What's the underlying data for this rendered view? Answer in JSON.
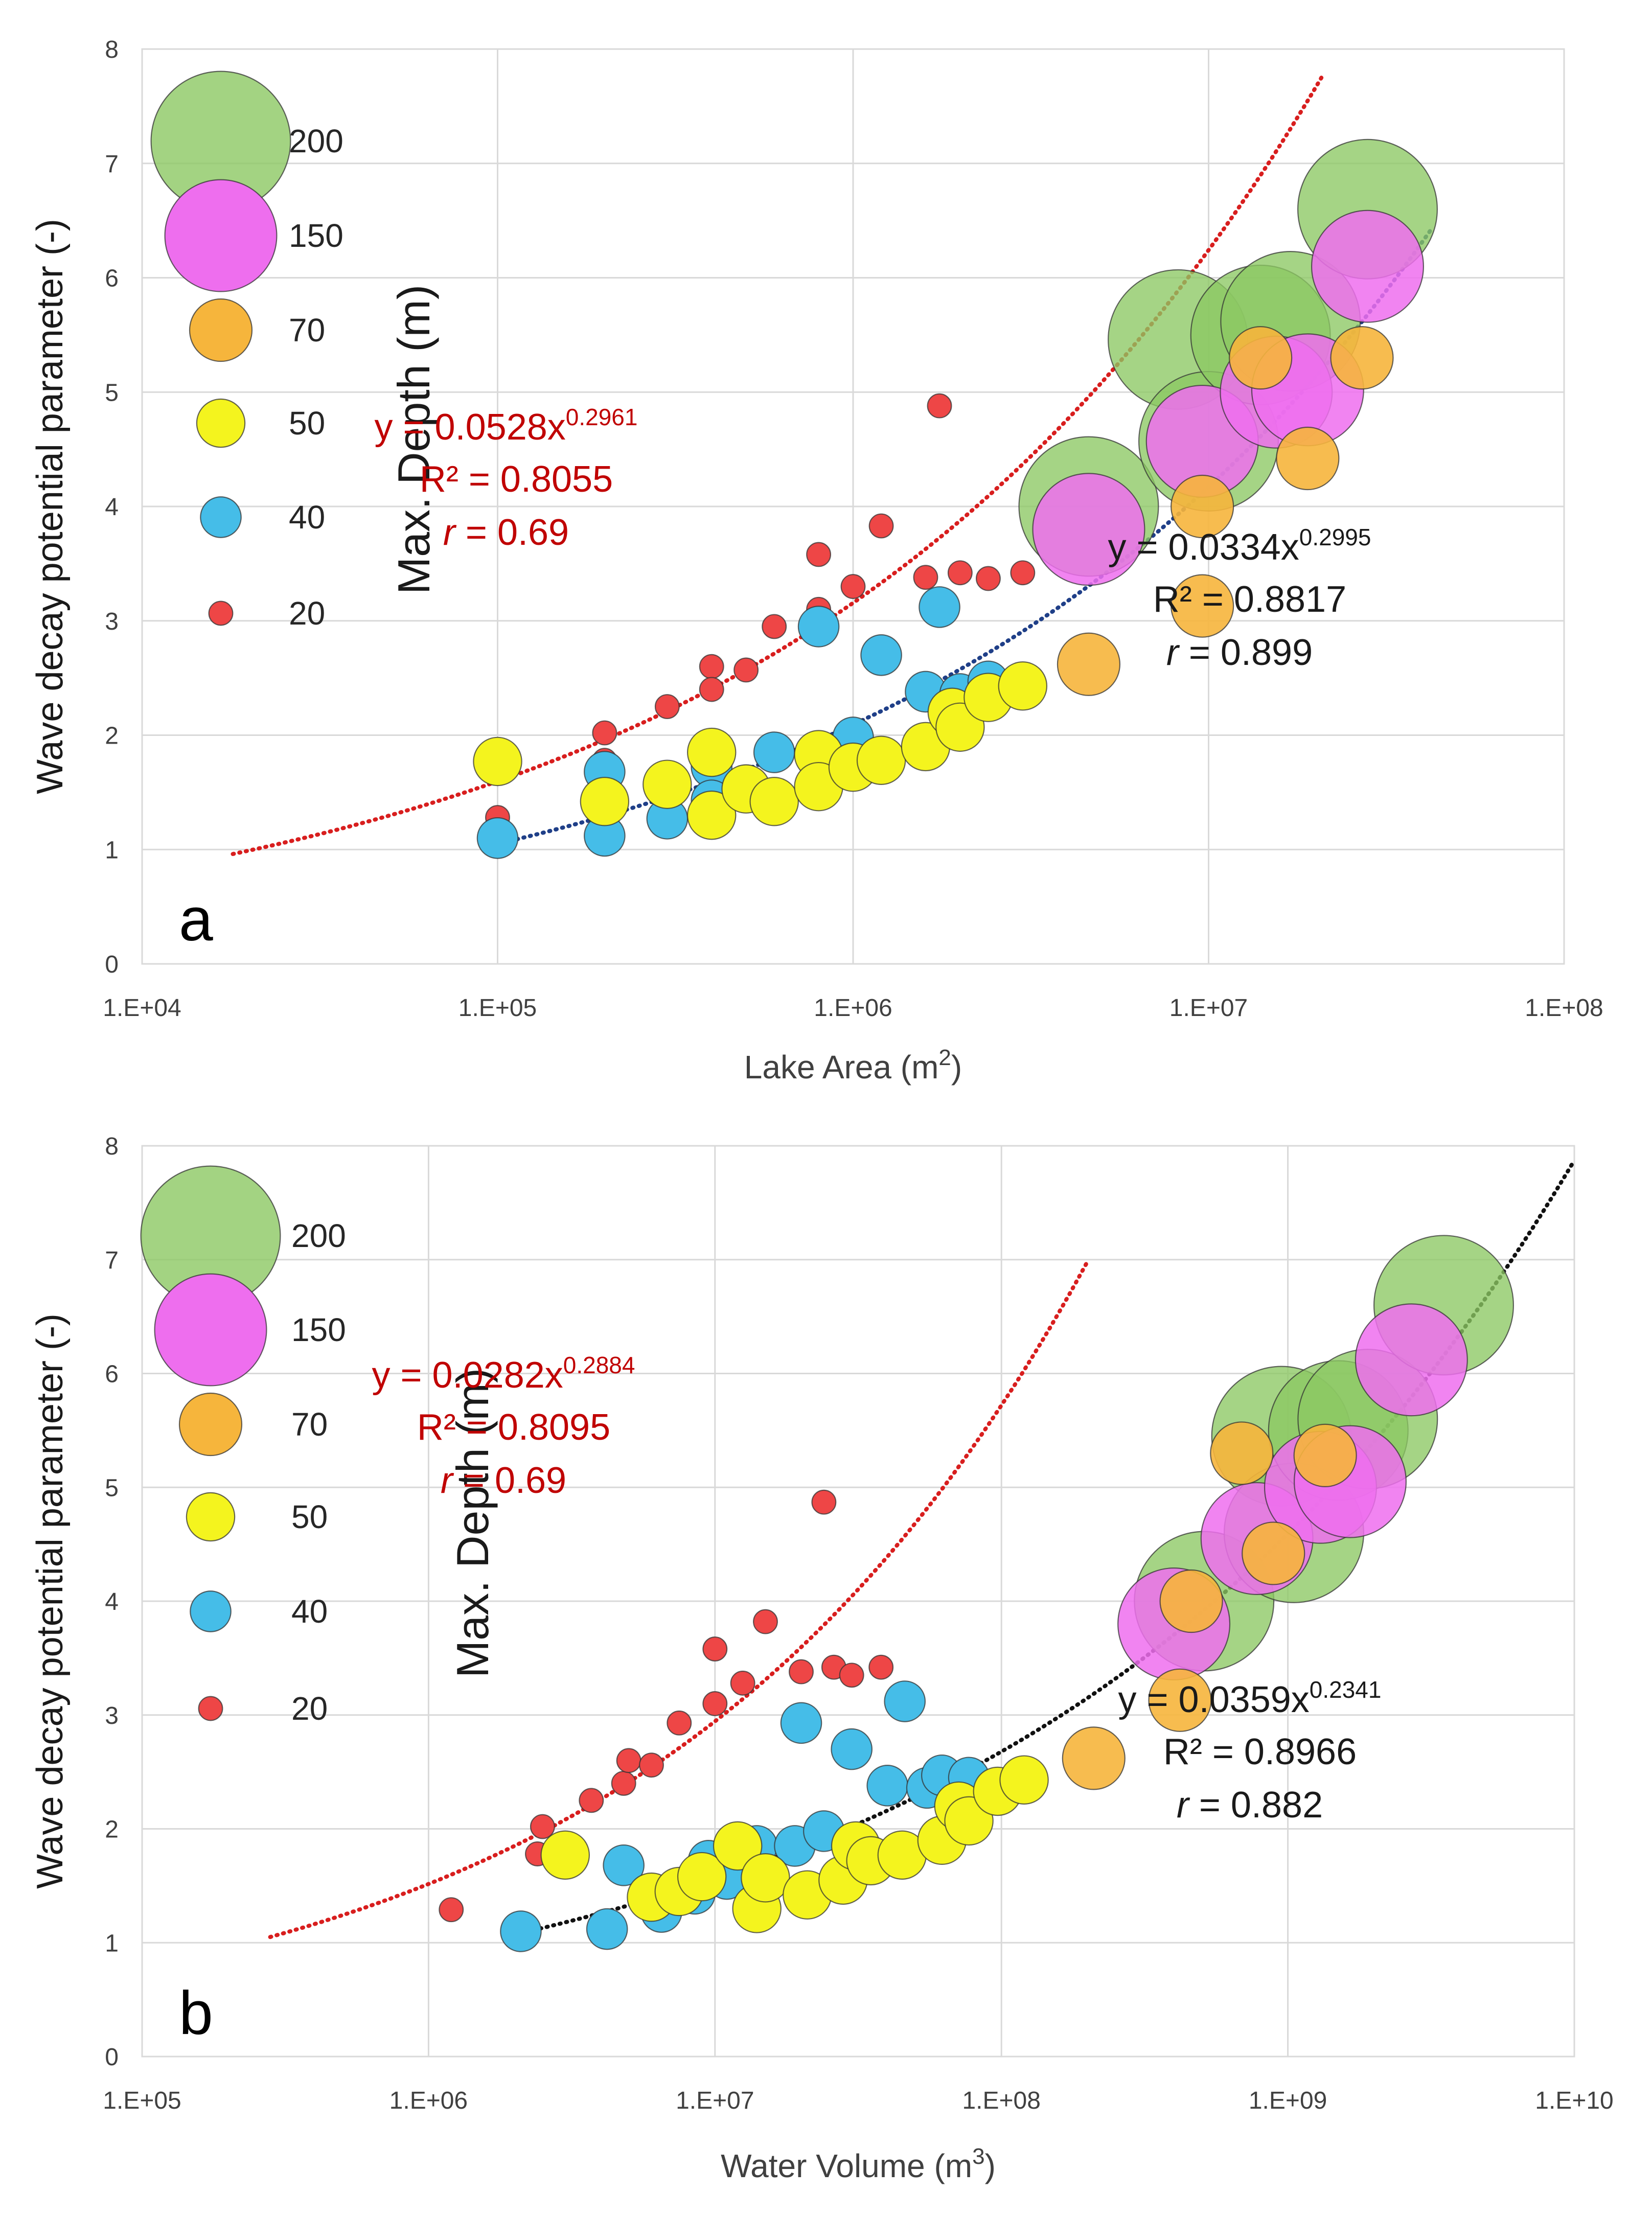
{
  "colors": {
    "green": "#8CC863",
    "magenta": "#EE6EEE",
    "orange": "#F6B53C",
    "yellow": "#F4F41E",
    "blue": "#45BDE8",
    "red": "#EE4646",
    "fit_red": "#D81E1E",
    "fit_blue": "#1F3F88",
    "fit_black": "#111111"
  },
  "chart_data": [
    {
      "type": "scatter",
      "panel_label": "a",
      "title": "",
      "xlabel": "Lake Area (m",
      "xlabel_sup": "2",
      "xlabel_close": ")",
      "ylabel": "Wave decay potential parameter (-)",
      "ylabel2": "Max. Depth (m)",
      "xscale": "log",
      "xlim": [
        10000,
        100000000
      ],
      "ylim": [
        0,
        8
      ],
      "xticks": [
        10000,
        100000,
        1000000,
        10000000,
        100000000
      ],
      "xtick_labels": [
        "1.E+04",
        "1.E+05",
        "1.E+06",
        "1.E+07",
        "1.E+08"
      ],
      "yticks": [
        0,
        1,
        2,
        3,
        4,
        5,
        6,
        7,
        8
      ],
      "ytick_labels": [
        "0",
        "1",
        "2",
        "3",
        "4",
        "5",
        "6",
        "7",
        "8"
      ],
      "legend": [
        {
          "label": "200",
          "size": 200,
          "color": "green"
        },
        {
          "label": "150",
          "size": 150,
          "color": "magenta"
        },
        {
          "label": "70",
          "size": 70,
          "color": "orange"
        },
        {
          "label": "50",
          "size": 50,
          "color": "yellow"
        },
        {
          "label": "40",
          "size": 40,
          "color": "blue"
        },
        {
          "label": "20",
          "size": 20,
          "color": "red"
        }
      ],
      "fits": [
        {
          "color": "fit_red",
          "a": 0.0528,
          "b": 0.2961,
          "x_range": [
            18000,
            21000000
          ],
          "eq_prefix": "y = 0.0528x",
          "eq_exp": "0.2961",
          "r2": "R² = 0.8055",
          "r_prefix": "r",
          "r_value": " = 0.69"
        },
        {
          "color": "fit_blue",
          "a": 0.0334,
          "b": 0.2995,
          "x_range": [
            100000,
            42000000
          ],
          "eq_prefix": "y = 0.0334x",
          "eq_exp": "0.2995",
          "r2": "R² = 0.8817",
          "r_prefix": "r",
          "r_value": " = 0.899"
        }
      ],
      "series": [
        {
          "name": "Max. Depth (m)",
          "color": "red",
          "size": 20,
          "points": [
            [
              100000,
              1.28
            ],
            [
              200000,
              2.02
            ],
            [
              200000,
              1.78
            ],
            [
              300000,
              2.25
            ],
            [
              400000,
              2.6
            ],
            [
              400000,
              2.4
            ],
            [
              500000,
              2.57
            ],
            [
              600000,
              2.95
            ],
            [
              800000,
              3.1
            ],
            [
              800000,
              3.58
            ],
            [
              1000000,
              3.3
            ],
            [
              1200000,
              3.83
            ],
            [
              1600000,
              3.38
            ],
            [
              1750000,
              4.88
            ],
            [
              2000000,
              3.42
            ],
            [
              2400000,
              3.37
            ],
            [
              3000000,
              3.42
            ]
          ]
        },
        {
          "name": "Wave decay potential parameter",
          "color": "blue",
          "size": 40,
          "points": [
            [
              100000,
              1.1
            ],
            [
              200000,
              1.68
            ],
            [
              200000,
              1.12
            ],
            [
              300000,
              1.27
            ],
            [
              400000,
              1.72
            ],
            [
              400000,
              1.43
            ],
            [
              500000,
              1.56
            ],
            [
              600000,
              1.85
            ],
            [
              800000,
              2.95
            ],
            [
              800000,
              1.85
            ],
            [
              1000000,
              1.98
            ],
            [
              1200000,
              2.7
            ],
            [
              1600000,
              2.38
            ],
            [
              1750000,
              3.12
            ],
            [
              2000000,
              2.36
            ],
            [
              2400000,
              2.47
            ],
            [
              3000000,
              2.45
            ]
          ]
        },
        {
          "name": "Wave decay potential parameter",
          "color": "yellow",
          "size": 50,
          "points": [
            [
              100000,
              1.77
            ],
            [
              200000,
              1.42
            ],
            [
              300000,
              1.57
            ],
            [
              400000,
              1.85
            ],
            [
              400000,
              1.3
            ],
            [
              500000,
              1.53
            ],
            [
              600000,
              1.42
            ],
            [
              800000,
              1.83
            ],
            [
              800000,
              1.55
            ],
            [
              1000000,
              1.72
            ],
            [
              1200000,
              1.78
            ],
            [
              1600000,
              1.9
            ],
            [
              1900000,
              2.2
            ],
            [
              2000000,
              2.07
            ],
            [
              2400000,
              2.33
            ],
            [
              3000000,
              2.43
            ]
          ]
        },
        {
          "name": "Max. Depth (m)",
          "color": "green",
          "size": 200,
          "points": [
            [
              4600000,
              4.0
            ],
            [
              8200000,
              5.46
            ],
            [
              10000000,
              4.57
            ],
            [
              14000000,
              5.5
            ],
            [
              17000000,
              5.62
            ],
            [
              28000000,
              6.6
            ]
          ]
        },
        {
          "name": "Wave decay potential parameter",
          "color": "magenta",
          "size": 150,
          "points": [
            [
              4600000,
              3.8
            ],
            [
              9600000,
              4.57
            ],
            [
              15500000,
              5.0
            ],
            [
              19000000,
              5.02
            ],
            [
              28000000,
              6.1
            ]
          ]
        },
        {
          "name": "Wave decay potential parameter",
          "color": "orange",
          "size": 70,
          "points": [
            [
              4600000,
              2.62
            ],
            [
              9600000,
              3.13
            ],
            [
              9600000,
              4.0
            ],
            [
              14000000,
              5.3
            ],
            [
              19000000,
              4.42
            ],
            [
              27000000,
              5.3
            ]
          ]
        }
      ]
    },
    {
      "type": "scatter",
      "panel_label": "b",
      "title": "",
      "xlabel": "Water Volume (m",
      "xlabel_sup": "3",
      "xlabel_close": ")",
      "ylabel": "Wave decay potential parameter (-)",
      "ylabel2": "Max. Depth (m)",
      "xscale": "log",
      "xlim": [
        100000,
        10000000000
      ],
      "ylim": [
        0,
        8
      ],
      "xticks": [
        100000,
        1000000,
        10000000,
        100000000,
        1000000000,
        10000000000
      ],
      "xtick_labels": [
        "1.E+05",
        "1.E+06",
        "1.E+07",
        "1.E+08",
        "1.E+09",
        "1.E+10"
      ],
      "yticks": [
        0,
        1,
        2,
        3,
        4,
        5,
        6,
        7,
        8
      ],
      "ytick_labels": [
        "0",
        "1",
        "2",
        "3",
        "4",
        "5",
        "6",
        "7",
        "8"
      ],
      "legend": [
        {
          "label": "200",
          "size": 200,
          "color": "green"
        },
        {
          "label": "150",
          "size": 150,
          "color": "magenta"
        },
        {
          "label": "70",
          "size": 70,
          "color": "orange"
        },
        {
          "label": "50",
          "size": 50,
          "color": "yellow"
        },
        {
          "label": "40",
          "size": 40,
          "color": "blue"
        },
        {
          "label": "20",
          "size": 20,
          "color": "red"
        }
      ],
      "fits": [
        {
          "color": "fit_red",
          "a": 0.0282,
          "b": 0.2884,
          "x_range": [
            280000,
            200000000
          ],
          "eq_prefix": "y = 0.0282x",
          "eq_exp": "0.2884",
          "r2": "R² = 0.8095",
          "r_prefix": "r",
          "r_value": " = 0.69"
        },
        {
          "color": "fit_black",
          "a": 0.0359,
          "b": 0.2341,
          "x_range": [
            2100000,
            10000000000
          ],
          "eq_prefix": "y = 0.0359x",
          "eq_exp": "0.2341",
          "r2": "R² = 0.8966",
          "r_prefix": "r",
          "r_value": " = 0.882"
        }
      ],
      "series": [
        {
          "name": "Max. Depth (m)",
          "color": "red",
          "size": 20,
          "points": [
            [
              1200000,
              1.29
            ],
            [
              2400000,
              1.78
            ],
            [
              2500000,
              2.02
            ],
            [
              3700000,
              2.25
            ],
            [
              4800000,
              2.4
            ],
            [
              5000000,
              2.6
            ],
            [
              6000000,
              2.56
            ],
            [
              7500000,
              2.93
            ],
            [
              10000000,
              3.1
            ],
            [
              10000000,
              3.58
            ],
            [
              12500000,
              3.28
            ],
            [
              15000000,
              3.82
            ],
            [
              20000000,
              3.38
            ],
            [
              24000000,
              4.87
            ],
            [
              26000000,
              3.42
            ],
            [
              30000000,
              3.35
            ],
            [
              38000000,
              3.42
            ]
          ]
        },
        {
          "name": "Wave decay potential parameter",
          "color": "blue",
          "size": 40,
          "points": [
            [
              2100000,
              1.1
            ],
            [
              4200000,
              1.12
            ],
            [
              4800000,
              1.68
            ],
            [
              6500000,
              1.27
            ],
            [
              8500000,
              1.43
            ],
            [
              9500000,
              1.72
            ],
            [
              11000000,
              1.56
            ],
            [
              14000000,
              1.85
            ],
            [
              19000000,
              1.85
            ],
            [
              20000000,
              2.93
            ],
            [
              24000000,
              1.98
            ],
            [
              30000000,
              2.7
            ],
            [
              40000000,
              2.38
            ],
            [
              46000000,
              3.12
            ],
            [
              55000000,
              2.36
            ],
            [
              62000000,
              2.47
            ],
            [
              77000000,
              2.45
            ]
          ]
        },
        {
          "name": "Wave decay potential parameter",
          "color": "yellow",
          "size": 50,
          "points": [
            [
              3000000,
              1.77
            ],
            [
              6000000,
              1.4
            ],
            [
              7500000,
              1.45
            ],
            [
              9000000,
              1.58
            ],
            [
              12000000,
              1.85
            ],
            [
              14000000,
              1.3
            ],
            [
              15000000,
              1.57
            ],
            [
              21000000,
              1.42
            ],
            [
              28000000,
              1.55
            ],
            [
              31000000,
              1.85
            ],
            [
              35000000,
              1.72
            ],
            [
              45000000,
              1.77
            ],
            [
              62000000,
              1.9
            ],
            [
              71000000,
              2.2
            ],
            [
              77000000,
              2.07
            ],
            [
              97000000,
              2.33
            ],
            [
              120000000,
              2.43
            ]
          ]
        },
        {
          "name": "Max. Depth (m)",
          "color": "green",
          "size": 200,
          "points": [
            [
              510000000,
              4.0
            ],
            [
              950000000,
              5.45
            ],
            [
              1050000000,
              4.6
            ],
            [
              1500000000,
              5.5
            ],
            [
              1900000000,
              5.6
            ],
            [
              3500000000,
              6.6
            ]
          ]
        },
        {
          "name": "Wave decay potential parameter",
          "color": "magenta",
          "size": 150,
          "points": [
            [
              400000000,
              3.8
            ],
            [
              780000000,
              4.55
            ],
            [
              1300000000,
              5.0
            ],
            [
              1650000000,
              5.05
            ],
            [
              2700000000,
              6.12
            ]
          ]
        },
        {
          "name": "Wave decay potential parameter",
          "color": "orange",
          "size": 70,
          "points": [
            [
              210000000,
              2.62
            ],
            [
              420000000,
              3.13
            ],
            [
              460000000,
              4.0
            ],
            [
              690000000,
              5.3
            ],
            [
              890000000,
              4.42
            ],
            [
              1350000000,
              5.28
            ]
          ]
        }
      ]
    }
  ]
}
